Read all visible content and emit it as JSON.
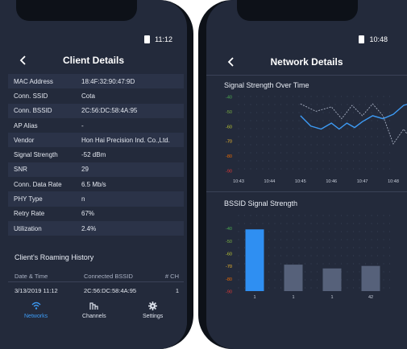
{
  "left": {
    "status_time": "11:12",
    "title": "Client Details",
    "details": [
      {
        "label": "MAC Address",
        "value": "18:4F:32:90:47:9D"
      },
      {
        "label": "Conn. SSID",
        "value": "Cota"
      },
      {
        "label": "Conn. BSSID",
        "value": "2C:56:DC:58:4A:95"
      },
      {
        "label": "AP Alias",
        "value": "-"
      },
      {
        "label": "Vendor",
        "value": "Hon Hai Precision Ind. Co.,Ltd."
      },
      {
        "label": "Signal Strength",
        "value": "-52 dBm"
      },
      {
        "label": "SNR",
        "value": "29"
      },
      {
        "label": "Conn. Data Rate",
        "value": "6.5 Mb/s"
      },
      {
        "label": "PHY Type",
        "value": "n"
      },
      {
        "label": "Retry Rate",
        "value": "67%"
      },
      {
        "label": "Utilization",
        "value": "2.4%"
      }
    ],
    "roaming": {
      "title": "Client's Roaming History",
      "headers": [
        "Date & Time",
        "Connected BSSID",
        "# CH"
      ],
      "rows": [
        [
          "3/13/2019 11:12",
          "2C:56:DC:58:4A:95",
          "1"
        ]
      ]
    },
    "tabs": [
      {
        "label": "Networks",
        "icon": "wifi-icon"
      },
      {
        "label": "Channels",
        "icon": "channels-icon"
      },
      {
        "label": "Settings",
        "icon": "gear-icon"
      }
    ],
    "accent": "#3d9bf5"
  },
  "right": {
    "status_time": "10:48",
    "title": "Network Details",
    "chart1_title": "Signal Strength Over Time",
    "chart2_title": "BSSID Signal Strength"
  },
  "chart_data": [
    {
      "type": "line",
      "title": "Signal Strength Over Time",
      "x": [
        "10:43",
        "10:44",
        "10:45",
        "10:46",
        "10:47",
        "10:48"
      ],
      "y_ticks": [
        "-40",
        "-50",
        "-60",
        "-70",
        "-80",
        "-90"
      ],
      "ylim": [
        -90,
        -40
      ],
      "series": [
        {
          "color": "#3d9bf5",
          "style": "solid",
          "values": [
            [
              "10:45",
              -53
            ],
            [
              "10:45",
              -60
            ],
            [
              "10:45",
              -62
            ],
            [
              "10:46",
              -58
            ],
            [
              "10:46",
              -62
            ],
            [
              "10:46",
              -58
            ],
            [
              "10:46",
              -61
            ],
            [
              "10:47",
              -57
            ],
            [
              "10:47",
              -53
            ],
            [
              "10:47",
              -55
            ],
            [
              "10:48",
              -52
            ],
            [
              "10:48",
              -46
            ],
            [
              "10:48",
              -44
            ]
          ]
        },
        {
          "color": "#a9b1c3",
          "style": "dashed",
          "values": [
            [
              "10:45",
              -45
            ],
            [
              "10:45",
              -50
            ],
            [
              "10:46",
              -47
            ],
            [
              "10:46",
              -55
            ],
            [
              "10:46",
              -46
            ],
            [
              "10:47",
              -53
            ],
            [
              "10:47",
              -45
            ],
            [
              "10:47",
              -53
            ],
            [
              "10:48",
              -72
            ],
            [
              "10:48",
              -62
            ],
            [
              "10:48",
              -72
            ]
          ]
        }
      ]
    },
    {
      "type": "bar",
      "title": "BSSID Signal Strength",
      "categories": [
        "1",
        "1",
        "1",
        "42"
      ],
      "values": [
        -41,
        -69,
        -72,
        -70
      ],
      "y_ticks": [
        "-40",
        "-50",
        "-60",
        "-70",
        "-80",
        "-90"
      ],
      "ylim": [
        -90,
        -30
      ],
      "colors": [
        "#2f8ff2",
        "#56617a",
        "#56617a",
        "#56617a"
      ]
    }
  ]
}
